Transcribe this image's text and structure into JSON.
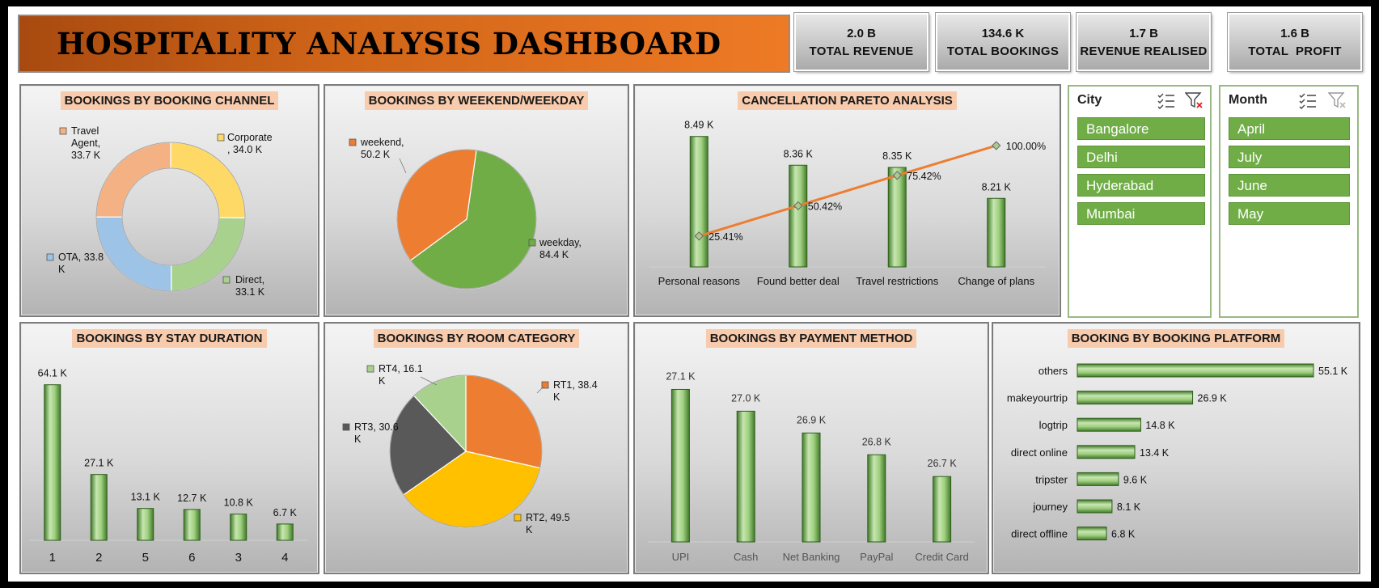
{
  "header": {
    "title": "HOSPITALITY ANALYSIS DASHBOARD"
  },
  "kpis": [
    {
      "value": "2.0 B",
      "label": "TOTAL REVENUE"
    },
    {
      "value": "134.6 K",
      "label": "TOTAL BOOKINGS"
    },
    {
      "value": "1.7 B",
      "label": "REVENUE REALISED"
    },
    {
      "value": "1.6 B",
      "label": "TOTAL  PROFIT"
    }
  ],
  "panels": {
    "channel": {
      "title": "BOOKINGS BY BOOKING CHANNEL"
    },
    "weekday": {
      "title": "BOOKINGS BY WEEKEND/WEEKDAY"
    },
    "pareto": {
      "title": "CANCELLATION PARETO ANALYSIS"
    },
    "stay": {
      "title": "BOOKINGS BY STAY DURATION"
    },
    "room": {
      "title": "BOOKINGS BY ROOM CATEGORY"
    },
    "payment": {
      "title": "BOOKINGS BY PAYMENT METHOD"
    },
    "platform": {
      "title": "BOOKING BY BOOKING PLATFORM"
    }
  },
  "slicers": {
    "city": {
      "title": "City",
      "items": [
        "Bangalore",
        "Delhi",
        "Hyderabad",
        "Mumbai"
      ]
    },
    "month": {
      "title": "Month",
      "items": [
        "April",
        "July",
        "June",
        "May"
      ]
    }
  },
  "colors": {
    "accent": "#ee7a25",
    "bar": "#70ad47",
    "title_bg": "#f8cbad",
    "slicer": "#70ad47"
  },
  "chart_data": [
    {
      "id": "channel",
      "type": "pie",
      "donut": true,
      "labels": [
        "Corporate",
        "Direct",
        "OTA",
        "Travel Agent"
      ],
      "values": [
        34.0,
        33.1,
        33.8,
        33.7
      ],
      "display": [
        "Corporate\n, 34.0 K",
        "Direct,\n33.1 K",
        "OTA, 33.8\nK",
        "Travel\nAgent,\n33.7 K"
      ],
      "colors": [
        "#ffd966",
        "#a9d18e",
        "#9dc3e6",
        "#f4b183"
      ]
    },
    {
      "id": "weekday",
      "type": "pie",
      "labels": [
        "weekday",
        "weekend"
      ],
      "values": [
        84.4,
        50.2
      ],
      "display": [
        "weekday,\n84.4 K",
        "weekend,\n50.2 K"
      ],
      "colors": [
        "#70ad47",
        "#ed7d31"
      ]
    },
    {
      "id": "pareto",
      "type": "bar",
      "categories": [
        "Personal reasons",
        "Found better deal",
        "Travel restrictions",
        "Change of plans"
      ],
      "values": [
        8.49,
        8.36,
        8.35,
        8.21
      ],
      "value_labels": [
        "8.49 K",
        "8.36 K",
        "8.35 K",
        "8.21 K"
      ],
      "cumulative": [
        25.41,
        50.42,
        75.42,
        100.0
      ],
      "cumulative_labels": [
        "25.41%",
        "50.42%",
        "75.42%",
        "100.00%"
      ]
    },
    {
      "id": "stay",
      "type": "bar",
      "categories": [
        "1",
        "2",
        "5",
        "6",
        "3",
        "4"
      ],
      "values": [
        64.1,
        27.1,
        13.1,
        12.7,
        10.8,
        6.7
      ],
      "value_labels": [
        "64.1 K",
        "27.1 K",
        "13.1 K",
        "12.7 K",
        "10.8 K",
        "6.7 K"
      ]
    },
    {
      "id": "room",
      "type": "pie",
      "labels": [
        "RT1",
        "RT2",
        "RT3",
        "RT4"
      ],
      "values": [
        38.4,
        49.5,
        30.6,
        16.1
      ],
      "display": [
        "RT1, 38.4\nK",
        "RT2, 49.5\nK",
        "RT3, 30.6\nK",
        "RT4, 16.1\nK"
      ],
      "colors": [
        "#ed7d31",
        "#ffc000",
        "#595959",
        "#a9d18e"
      ]
    },
    {
      "id": "payment",
      "type": "bar",
      "categories": [
        "UPI",
        "Cash",
        "Net Banking",
        "PayPal",
        "Credit Card"
      ],
      "values": [
        27.1,
        27.0,
        26.9,
        26.8,
        26.7
      ],
      "value_labels": [
        "27.1 K",
        "27.0 K",
        "26.9 K",
        "26.8 K",
        "26.7 K"
      ]
    },
    {
      "id": "platform",
      "type": "bar",
      "orientation": "horizontal",
      "categories": [
        "others",
        "makeyourtrip",
        "logtrip",
        "direct online",
        "tripster",
        "journey",
        "direct offline"
      ],
      "values": [
        55.1,
        26.9,
        14.8,
        13.4,
        9.6,
        8.1,
        6.8
      ],
      "value_labels": [
        "55.1 K",
        "26.9 K",
        "14.8 K",
        "13.4 K",
        "9.6 K",
        "8.1 K",
        "6.8 K"
      ]
    }
  ]
}
